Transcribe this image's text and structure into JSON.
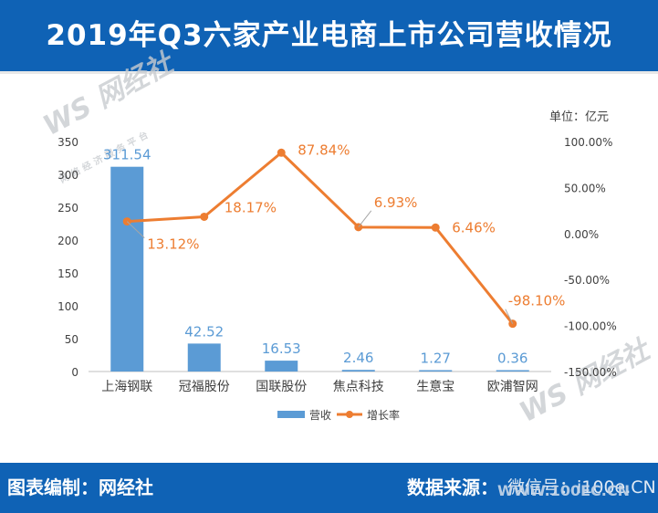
{
  "header": {
    "title": "2019年Q3六家产业电商上市公司营收情况"
  },
  "footer": {
    "left": "图表编制：网经社",
    "right": "数据来源：",
    "wechat": "微信号：i100e.CN"
  },
  "watermark": {
    "logo": "WS 网经社",
    "tagline": "网络经济服务平台",
    "url": "WWW.100EC.CN"
  },
  "colors": {
    "bar": "#5b9bd5",
    "line": "#ed7d31",
    "header": "#0f62b5",
    "bar_label": "#5b9bd5",
    "line_label": "#ed7d31"
  },
  "chart_data": {
    "type": "bar+line",
    "title": "2019年Q3六家产业电商上市公司营收情况",
    "unit_label": "单位：亿元",
    "categories": [
      "上海钢联",
      "冠福股份",
      "国联股份",
      "焦点科技",
      "生意宝",
      "欧浦智网"
    ],
    "series": [
      {
        "name": "营收",
        "type": "bar",
        "axis": "left",
        "values": [
          311.54,
          42.52,
          16.53,
          2.46,
          1.27,
          0.36
        ],
        "labels": [
          "311.54",
          "42.52",
          "16.53",
          "2.46",
          "1.27",
          "0.36"
        ]
      },
      {
        "name": "增长率",
        "type": "line",
        "axis": "right",
        "values": [
          13.12,
          18.17,
          87.84,
          6.93,
          6.46,
          -98.1
        ],
        "labels": [
          "13.12%",
          "18.17%",
          "87.84%",
          "6.93%",
          "6.46%",
          "-98.10%"
        ]
      }
    ],
    "y_left": {
      "min": 0,
      "max": 350,
      "ticks": [
        0,
        50,
        100,
        150,
        200,
        250,
        300,
        350
      ],
      "tick_labels": [
        "0",
        "50",
        "100",
        "150",
        "200",
        "250",
        "300",
        "350"
      ]
    },
    "y_right": {
      "min": -150,
      "max": 100,
      "ticks": [
        -150,
        -100,
        -50,
        0,
        50,
        100
      ],
      "tick_labels": [
        "-150.00%",
        "-100.00%",
        "-50.00%",
        "0.00%",
        "50.00%",
        "100.00%"
      ]
    },
    "legend": [
      {
        "name": "营收",
        "kind": "bar"
      },
      {
        "name": "增长率",
        "kind": "line"
      }
    ],
    "legend_position": "bottom-center",
    "grid": false
  }
}
